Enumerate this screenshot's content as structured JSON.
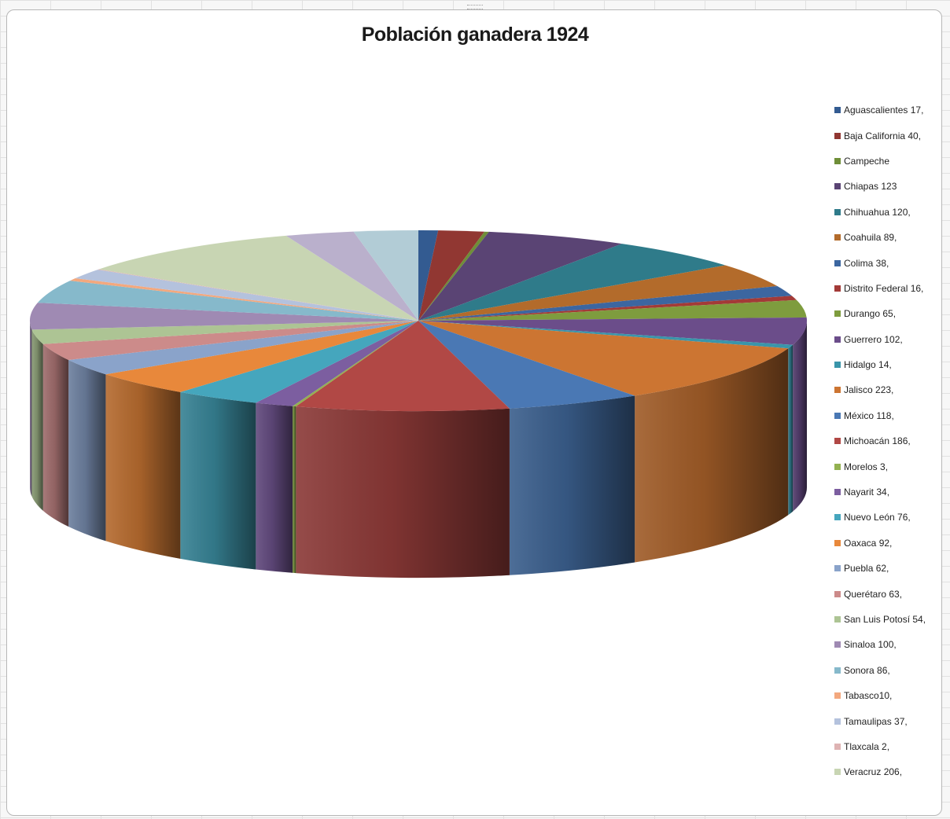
{
  "chart_data": {
    "type": "pie",
    "title": "Población ganadera 1924",
    "legend_position": "right",
    "style": "3d",
    "slices": [
      {
        "label": "Aguascalientes 17,",
        "value": 17,
        "color": "#335b91"
      },
      {
        "label": "Baja California 40,",
        "value": 40,
        "color": "#913732"
      },
      {
        "label": "Campeche",
        "value": 4,
        "color": "#6f8e38"
      },
      {
        "label": "Chiapas 123",
        "value": 123,
        "color": "#5a4474"
      },
      {
        "label": "Chihuahua 120,",
        "value": 120,
        "color": "#2f7b8a"
      },
      {
        "label": "Coahuila 89,",
        "value": 89,
        "color": "#b36b2b"
      },
      {
        "label": "Colima 38,",
        "value": 38,
        "color": "#3c66a0"
      },
      {
        "label": "Distrito Federal 16,",
        "value": 16,
        "color": "#a33a37"
      },
      {
        "label": "Durango 65,",
        "value": 65,
        "color": "#7e9c3e"
      },
      {
        "label": "Guerrero 102,",
        "value": 102,
        "color": "#6b4d8a"
      },
      {
        "label": "Hidalgo 14,",
        "value": 14,
        "color": "#3a95aa"
      },
      {
        "label": "Jalisco 223,",
        "value": 223,
        "color": "#cc7532"
      },
      {
        "label": "México 118,",
        "value": 118,
        "color": "#4a78b4"
      },
      {
        "label": "Michoacán 186,",
        "value": 186,
        "color": "#b14845"
      },
      {
        "label": "Morelos 3,",
        "value": 3,
        "color": "#93b151"
      },
      {
        "label": "Nayarit 34,",
        "value": 34,
        "color": "#7c5ea0"
      },
      {
        "label": "Nuevo León 76,",
        "value": 76,
        "color": "#45a6bd"
      },
      {
        "label": "Oaxaca 92,",
        "value": 92,
        "color": "#e8883b"
      },
      {
        "label": "Puebla 62,",
        "value": 62,
        "color": "#8aa3ca"
      },
      {
        "label": "Querétaro 63,",
        "value": 63,
        "color": "#cc8b8a"
      },
      {
        "label": "San Luis Potosí 54,",
        "value": 54,
        "color": "#adc494"
      },
      {
        "label": "Sinaloa 100,",
        "value": 100,
        "color": "#9f8ab3"
      },
      {
        "label": "Sonora 86,",
        "value": 86,
        "color": "#86b9cb"
      },
      {
        "label": "Tabasco10,",
        "value": 10,
        "color": "#f3a87e"
      },
      {
        "label": "Tamaulipas 37,",
        "value": 37,
        "color": "#b4c2dd"
      },
      {
        "label": "Tlaxcala 2,",
        "value": 2,
        "color": "#deb3b3"
      },
      {
        "label": "Veracruz 206,",
        "value": 206,
        "color": "#c8d5b3"
      },
      {
        "label": "",
        "value": 60,
        "color": "#bab0cc"
      },
      {
        "label": "",
        "value": 56,
        "color": "#b2ccd6"
      }
    ]
  }
}
